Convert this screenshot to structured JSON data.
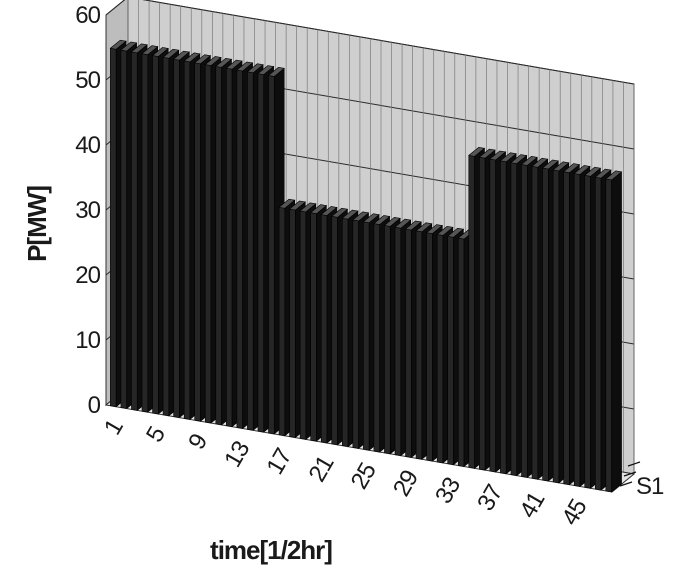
{
  "chart_data": {
    "type": "bar",
    "title": "",
    "xlabel": "time[1/2hr]",
    "ylabel": "P[MW]",
    "ylim": [
      0,
      60
    ],
    "yticks": [
      0,
      10,
      20,
      30,
      40,
      50,
      60
    ],
    "xtick_labels": [
      "1",
      "5",
      "9",
      "13",
      "17",
      "21",
      "25",
      "29",
      "33",
      "37",
      "41",
      "45"
    ],
    "series_label": "S1",
    "grid": true,
    "three_d": true,
    "categories": [
      1,
      2,
      3,
      4,
      5,
      6,
      7,
      8,
      9,
      10,
      11,
      12,
      13,
      14,
      15,
      16,
      17,
      18,
      19,
      20,
      21,
      22,
      23,
      24,
      25,
      26,
      27,
      28,
      29,
      30,
      31,
      32,
      33,
      34,
      35,
      36,
      37,
      38,
      39,
      40,
      41,
      42,
      43,
      44,
      45,
      46,
      47,
      48
    ],
    "series": [
      {
        "name": "S1",
        "values": [
          55,
          55,
          55,
          55,
          55,
          55,
          55,
          55,
          55,
          55,
          55,
          55,
          55,
          55,
          55,
          55,
          35,
          35,
          35,
          35,
          35,
          35,
          35,
          35,
          35,
          35,
          35,
          35,
          35,
          35,
          35,
          35,
          35,
          35,
          48,
          48,
          48,
          48,
          48,
          48,
          48,
          48,
          48,
          48,
          48,
          48,
          48,
          48
        ]
      }
    ],
    "colors": {
      "bar_front": "#262626",
      "bar_top": "#555555",
      "bar_side": "#0d0d0d",
      "back_wall": "#cfcfcf",
      "side_wall": "#bdbdbd",
      "grid": "#2a2a2a"
    }
  }
}
